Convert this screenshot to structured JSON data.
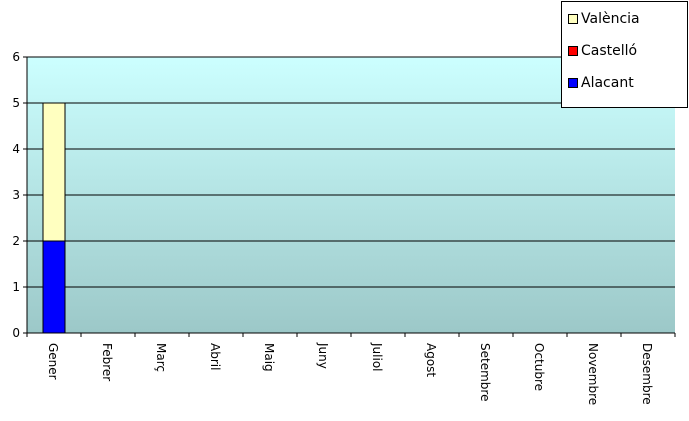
{
  "chart_data": {
    "type": "bar",
    "stacked": true,
    "categories": [
      "Gener",
      "Febrer",
      "Març",
      "Abril",
      "Maig",
      "Juny",
      "Juliol",
      "Agost",
      "Setembre",
      "Octubre",
      "Novembre",
      "Desembre"
    ],
    "series": [
      {
        "name": "Alacant",
        "color": "#0000ff",
        "values": [
          2,
          0,
          0,
          0,
          0,
          0,
          0,
          0,
          0,
          0,
          0,
          0
        ]
      },
      {
        "name": "Castelló",
        "color": "#ff0000",
        "values": [
          0,
          0,
          0,
          0,
          0,
          0,
          0,
          0,
          0,
          0,
          0,
          0
        ]
      },
      {
        "name": "València",
        "color": "#ffffc0",
        "values": [
          3,
          0,
          0,
          0,
          0,
          0,
          0,
          0,
          0,
          0,
          0,
          0
        ]
      }
    ],
    "ylim": [
      0,
      6
    ],
    "yticks": [
      0,
      1,
      2,
      3,
      4,
      5,
      6
    ],
    "title": "",
    "xlabel": "",
    "ylabel": "",
    "grid": true,
    "legend_position": "top-right",
    "legend_order": [
      "València",
      "Castelló",
      "Alacant"
    ],
    "plot_background_gradient": [
      "#ccffff",
      "#9cc8c8"
    ]
  }
}
